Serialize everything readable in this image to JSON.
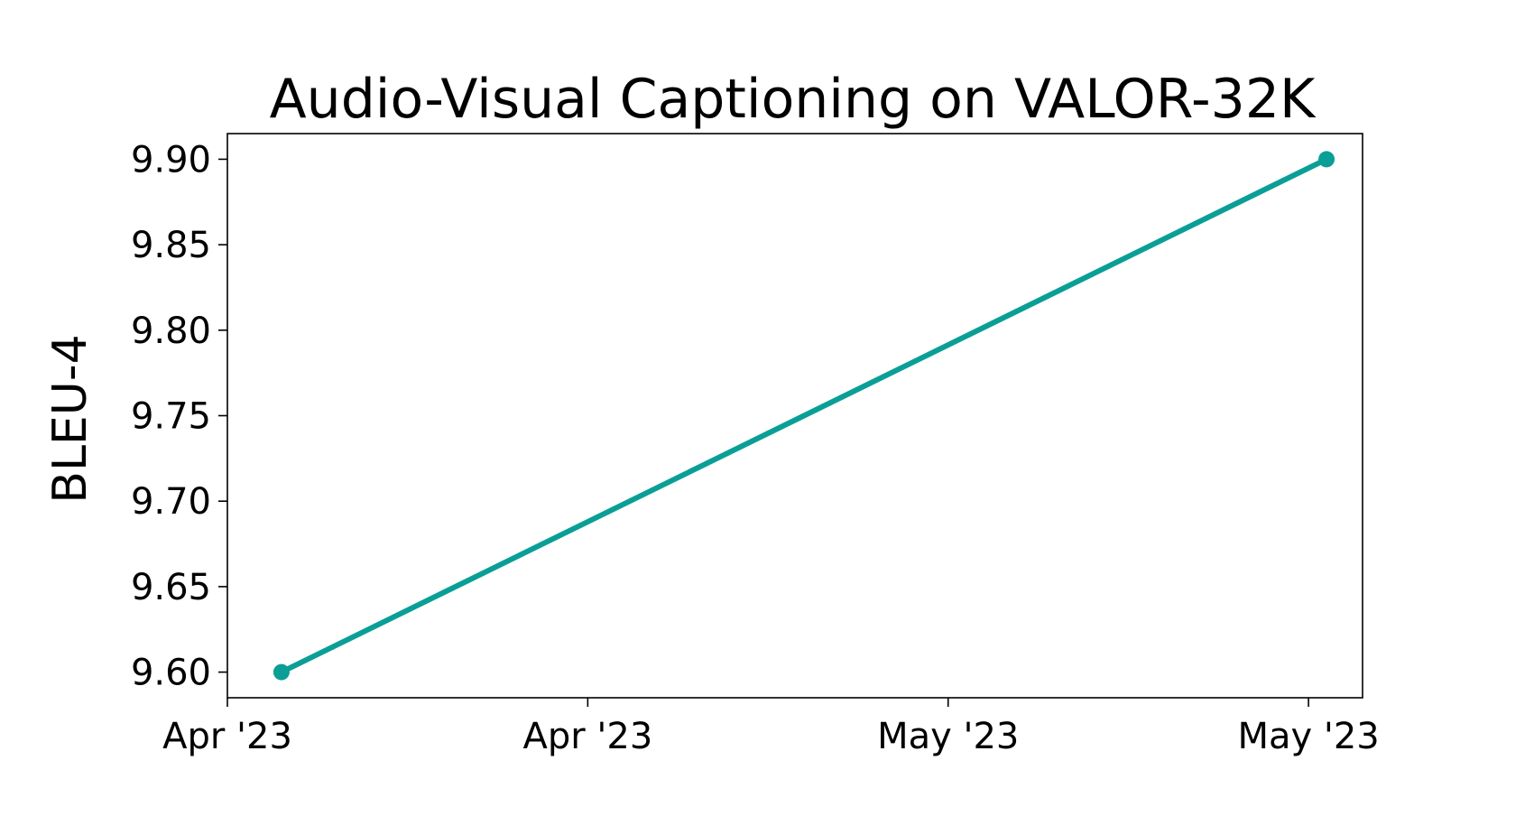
{
  "chart_data": {
    "type": "line",
    "title": "Audio-Visual Captioning on VALOR-32K",
    "xlabel": "",
    "ylabel": "BLEU-4",
    "x_tick_labels": [
      "Apr '23",
      "Apr '23",
      "May '23",
      "May '23"
    ],
    "y_tick_labels": [
      "9.60",
      "9.65",
      "9.70",
      "9.75",
      "9.80",
      "9.85",
      "9.90"
    ],
    "y_ticks": [
      9.6,
      9.65,
      9.7,
      9.75,
      9.8,
      9.85,
      9.9
    ],
    "ylim": [
      9.585,
      9.915
    ],
    "series": [
      {
        "color": "#0a9f96",
        "points": [
          {
            "x": "2023-04-02",
            "y": 9.6
          },
          {
            "x": "2023-05-30",
            "y": 9.9
          }
        ]
      }
    ],
    "x_ticks": [
      "2023-03-30",
      "2023-04-19",
      "2023-05-09",
      "2023-05-29"
    ],
    "xlim": [
      "2023-03-30",
      "2023-06-01"
    ],
    "grid": false,
    "legend": "none"
  }
}
